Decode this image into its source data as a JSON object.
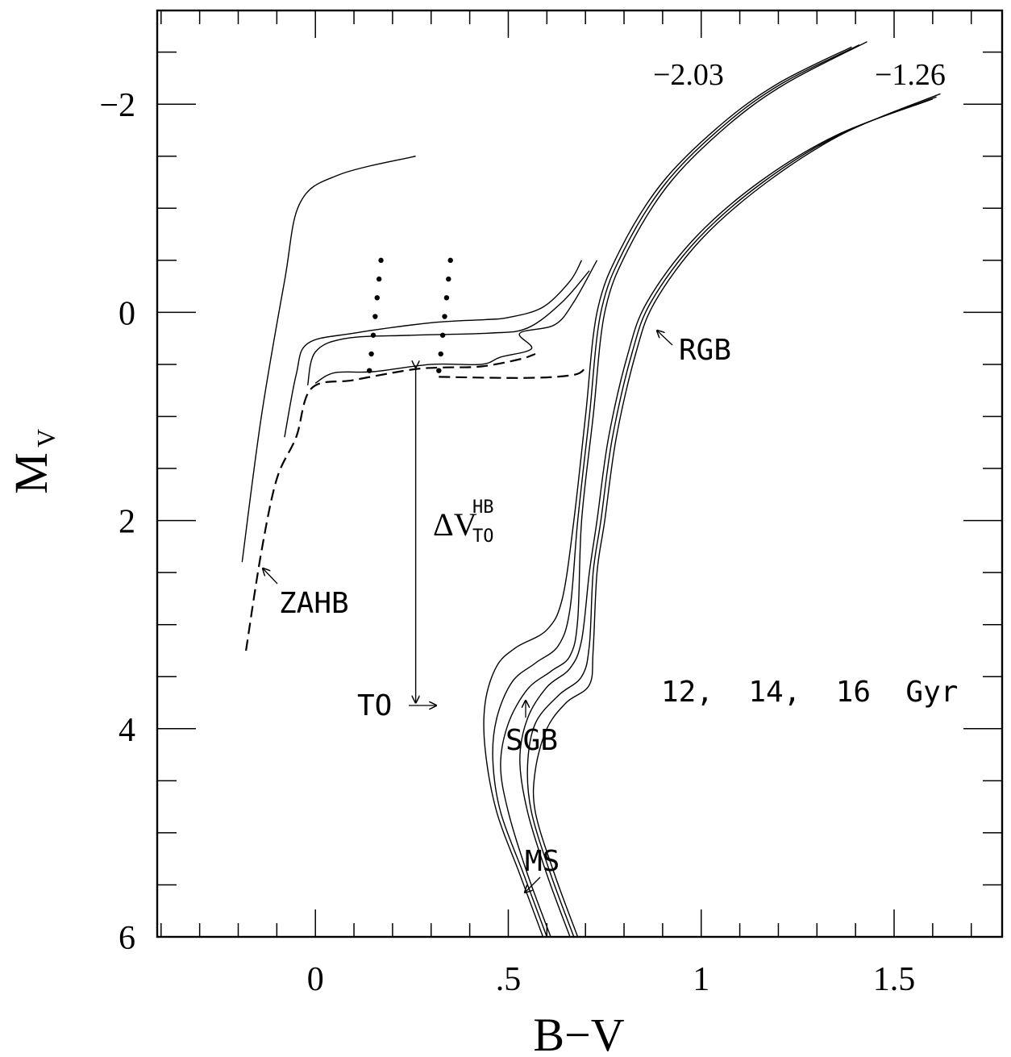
{
  "chart_data": {
    "type": "line",
    "xlabel": "B−V",
    "ylabel_main": "M",
    "ylabel_sub": "V",
    "xlim": [
      -0.41,
      1.78
    ],
    "ylim": [
      6,
      -2.9
    ],
    "x_ticks": [
      {
        "value": 0,
        "label": "0"
      },
      {
        "value": 0.5,
        "label": ".5"
      },
      {
        "value": 1,
        "label": "1"
      },
      {
        "value": 1.5,
        "label": "1.5"
      }
    ],
    "y_ticks": [
      {
        "value": -2,
        "label": "−2"
      },
      {
        "value": 0,
        "label": "0"
      },
      {
        "value": 2,
        "label": "2"
      },
      {
        "value": 4,
        "label": "4"
      },
      {
        "value": 6,
        "label": "6"
      }
    ],
    "x_minor_step": 0.1,
    "y_minor_step": 0.5,
    "annotations": {
      "metal_poor": "−2.03",
      "metal_rich": "−1.26",
      "rgb": "RGB",
      "zahb": "ZAHB",
      "to": "TO",
      "sgb": "SGB",
      "ms": "MS",
      "ages": "12,  14,  16  Gyr",
      "delta_main": "ΔV",
      "delta_sup": "HB",
      "delta_sub": "TO"
    },
    "series": [
      {
        "group": "−2.03",
        "points": [
          [
            0.59,
            6.0
          ],
          [
            0.53,
            5.4
          ],
          [
            0.47,
            4.8
          ],
          [
            0.44,
            4.2
          ],
          [
            0.44,
            3.75
          ],
          [
            0.47,
            3.4
          ],
          [
            0.52,
            3.22
          ],
          [
            0.6,
            3.05
          ],
          [
            0.64,
            2.75
          ],
          [
            0.67,
            2.0
          ],
          [
            0.7,
            1.0
          ],
          [
            0.73,
            0.0
          ],
          [
            0.79,
            -0.6
          ],
          [
            0.9,
            -1.25
          ],
          [
            1.05,
            -1.8
          ],
          [
            1.2,
            -2.2
          ],
          [
            1.39,
            -2.55
          ]
        ]
      },
      {
        "group": "−2.03",
        "points": [
          [
            0.6,
            6.0
          ],
          [
            0.54,
            5.4
          ],
          [
            0.48,
            4.8
          ],
          [
            0.46,
            4.3
          ],
          [
            0.47,
            3.9
          ],
          [
            0.51,
            3.55
          ],
          [
            0.57,
            3.37
          ],
          [
            0.63,
            3.2
          ],
          [
            0.66,
            2.85
          ],
          [
            0.68,
            2.0
          ],
          [
            0.71,
            1.0
          ],
          [
            0.74,
            0.0
          ],
          [
            0.8,
            -0.6
          ],
          [
            0.91,
            -1.25
          ],
          [
            1.06,
            -1.8
          ],
          [
            1.21,
            -2.2
          ],
          [
            1.41,
            -2.57
          ]
        ]
      },
      {
        "group": "−2.03",
        "points": [
          [
            0.61,
            6.0
          ],
          [
            0.55,
            5.4
          ],
          [
            0.5,
            4.8
          ],
          [
            0.48,
            4.35
          ],
          [
            0.5,
            3.95
          ],
          [
            0.55,
            3.62
          ],
          [
            0.61,
            3.45
          ],
          [
            0.66,
            3.3
          ],
          [
            0.68,
            2.95
          ],
          [
            0.69,
            2.0
          ],
          [
            0.72,
            1.0
          ],
          [
            0.75,
            0.0
          ],
          [
            0.81,
            -0.6
          ],
          [
            0.92,
            -1.25
          ],
          [
            1.07,
            -1.8
          ],
          [
            1.22,
            -2.2
          ],
          [
            1.43,
            -2.6
          ]
        ]
      },
      {
        "group": "−1.26",
        "points": [
          [
            0.66,
            6.0
          ],
          [
            0.6,
            5.4
          ],
          [
            0.55,
            4.8
          ],
          [
            0.53,
            4.3
          ],
          [
            0.55,
            3.9
          ],
          [
            0.6,
            3.6
          ],
          [
            0.66,
            3.42
          ],
          [
            0.69,
            3.15
          ],
          [
            0.71,
            2.5
          ],
          [
            0.73,
            2.0
          ],
          [
            0.76,
            1.2
          ],
          [
            0.81,
            0.4
          ],
          [
            0.86,
            -0.1
          ],
          [
            0.98,
            -0.7
          ],
          [
            1.15,
            -1.25
          ],
          [
            1.35,
            -1.7
          ],
          [
            1.6,
            -2.05
          ]
        ]
      },
      {
        "group": "−1.26",
        "points": [
          [
            0.67,
            6.0
          ],
          [
            0.61,
            5.4
          ],
          [
            0.56,
            4.8
          ],
          [
            0.55,
            4.35
          ],
          [
            0.57,
            3.95
          ],
          [
            0.63,
            3.68
          ],
          [
            0.69,
            3.5
          ],
          [
            0.71,
            3.2
          ],
          [
            0.72,
            2.5
          ],
          [
            0.74,
            2.0
          ],
          [
            0.77,
            1.2
          ],
          [
            0.82,
            0.4
          ],
          [
            0.87,
            -0.1
          ],
          [
            0.99,
            -0.7
          ],
          [
            1.16,
            -1.25
          ],
          [
            1.36,
            -1.71
          ],
          [
            1.61,
            -2.07
          ]
        ]
      },
      {
        "group": "−1.26",
        "points": [
          [
            0.68,
            6.0
          ],
          [
            0.62,
            5.4
          ],
          [
            0.57,
            4.8
          ],
          [
            0.57,
            4.4
          ],
          [
            0.6,
            4.0
          ],
          [
            0.65,
            3.75
          ],
          [
            0.71,
            3.58
          ],
          [
            0.72,
            3.25
          ],
          [
            0.73,
            2.5
          ],
          [
            0.75,
            2.0
          ],
          [
            0.78,
            1.2
          ],
          [
            0.83,
            0.4
          ],
          [
            0.88,
            -0.1
          ],
          [
            1.0,
            -0.7
          ],
          [
            1.17,
            -1.25
          ],
          [
            1.37,
            -1.72
          ],
          [
            1.62,
            -2.1
          ]
        ]
      },
      {
        "group": "HB",
        "points": [
          [
            -0.19,
            2.4
          ],
          [
            -0.14,
            1.0
          ],
          [
            -0.08,
            -0.3
          ],
          [
            -0.04,
            -1.05
          ],
          [
            0.06,
            -1.32
          ],
          [
            0.26,
            -1.5
          ]
        ]
      },
      {
        "group": "HB",
        "points": [
          [
            -0.08,
            1.2
          ],
          [
            -0.05,
            0.6
          ],
          [
            -0.02,
            0.3
          ],
          [
            0.1,
            0.2
          ],
          [
            0.3,
            0.1
          ],
          [
            0.44,
            0.07
          ],
          [
            0.5,
            0.05
          ],
          [
            0.59,
            -0.05
          ],
          [
            0.66,
            -0.3
          ],
          [
            0.69,
            -0.5
          ]
        ]
      },
      {
        "group": "HB",
        "points": [
          [
            -0.02,
            0.7
          ],
          [
            0.0,
            0.38
          ],
          [
            0.08,
            0.25
          ],
          [
            0.25,
            0.22
          ],
          [
            0.45,
            0.2
          ],
          [
            0.55,
            0.15
          ],
          [
            0.64,
            -0.1
          ],
          [
            0.71,
            -0.4
          ]
        ]
      },
      {
        "group": "HB",
        "points": [
          [
            0.0,
            0.68
          ],
          [
            0.05,
            0.58
          ],
          [
            0.15,
            0.57
          ],
          [
            0.3,
            0.5
          ],
          [
            0.43,
            0.5
          ],
          [
            0.48,
            0.43
          ],
          [
            0.56,
            0.35
          ],
          [
            0.53,
            0.2
          ],
          [
            0.62,
            0.12
          ],
          [
            0.67,
            -0.1
          ],
          [
            0.73,
            -0.5
          ]
        ]
      },
      {
        "group": "ZAHB",
        "points": [
          [
            -0.18,
            3.25
          ],
          [
            -0.14,
            2.3
          ],
          [
            -0.1,
            1.6
          ],
          [
            -0.05,
            1.2
          ],
          [
            -0.01,
            0.73
          ],
          [
            0.1,
            0.65
          ],
          [
            0.25,
            0.55
          ],
          [
            0.33,
            0.53
          ],
          [
            0.43,
            0.52
          ],
          [
            0.53,
            0.45
          ],
          [
            0.57,
            0.4
          ]
        ]
      },
      {
        "group": "ZAHB",
        "points": [
          [
            0.32,
            0.62
          ],
          [
            0.55,
            0.63
          ],
          [
            0.67,
            0.6
          ],
          [
            0.7,
            0.53
          ]
        ]
      }
    ],
    "dots": [
      [
        0.17,
        -0.5
      ],
      [
        0.165,
        -0.32
      ],
      [
        0.16,
        -0.14
      ],
      [
        0.155,
        0.04
      ],
      [
        0.15,
        0.22
      ],
      [
        0.145,
        0.4
      ],
      [
        0.14,
        0.56
      ],
      [
        0.35,
        -0.5
      ],
      [
        0.345,
        -0.32
      ],
      [
        0.34,
        -0.14
      ],
      [
        0.335,
        0.04
      ],
      [
        0.33,
        0.22
      ],
      [
        0.325,
        0.4
      ],
      [
        0.32,
        0.56
      ]
    ],
    "delta_arrow": {
      "x": 0.26,
      "y_top": 0.53,
      "y_bottom": 3.75
    }
  }
}
